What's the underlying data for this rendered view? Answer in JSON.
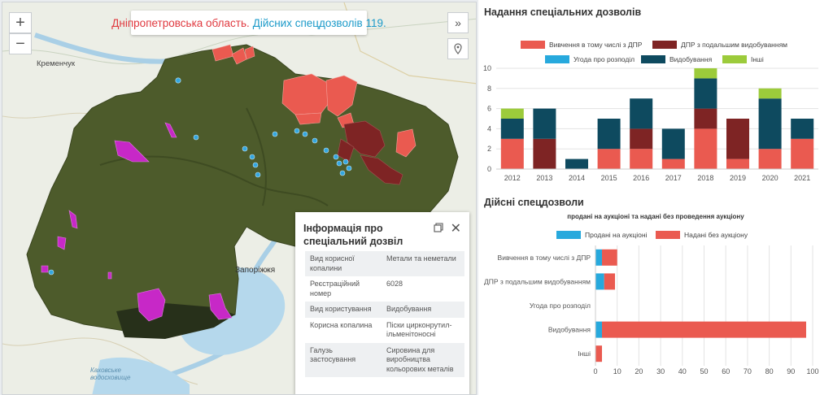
{
  "map": {
    "title_region": "Дніпропетровська область.",
    "title_count": "Дійсних спецдозволів 119.",
    "zoom_in": "+",
    "zoom_out": "−",
    "place_kremenchuk": "Кременчук",
    "place_zaporizhzhia": "Запоріжжя",
    "place_kakhovka": "Каховське водосховище",
    "colors": {
      "land": "#4c5a2a",
      "red": "#ea5a50",
      "darkred": "#7e2424",
      "magenta": "#c728c7",
      "blue": "#35a7e0"
    }
  },
  "info": {
    "title": "Інформація про спеціальний дозвіл",
    "rows": [
      {
        "key": "Вид корисної копалини",
        "value": "Метали та неметали"
      },
      {
        "key": "Реєстраційний номер",
        "value": "6028"
      },
      {
        "key": "Вид користування",
        "value": "Видобування"
      },
      {
        "key": "Корисна копалина",
        "value": "Піски цирконрутил-ільменітоносні"
      },
      {
        "key": "Галузь застосування",
        "value": "Сировина для виробництва кольорових металів"
      }
    ]
  },
  "panel": {
    "section1_title": "Надання спеціальних дозволів",
    "section2_title": "Дійсні спецдозволи",
    "section2_subtitle": "продані на аукціоні та надані без проведення аукціону"
  },
  "chart_data": [
    {
      "type": "bar",
      "stacked": true,
      "title": "Надання спеціальних дозволів",
      "categories": [
        "2012",
        "2013",
        "2014",
        "2015",
        "2016",
        "2017",
        "2018",
        "2019",
        "2020",
        "2021"
      ],
      "series": [
        {
          "name": "Вивчення в тому числі з ДПР",
          "color": "#ea5a50",
          "values": [
            3,
            0,
            0,
            2,
            2,
            1,
            4,
            1,
            2,
            3
          ]
        },
        {
          "name": "ДПР з подальшим видобуванням",
          "color": "#7e2424",
          "values": [
            0,
            3,
            0,
            0,
            2,
            0,
            2,
            4,
            0,
            0
          ]
        },
        {
          "name": "Угода про розподіл",
          "color": "#27a9dd",
          "values": [
            0,
            0,
            0,
            0,
            0,
            0,
            0,
            0,
            0,
            0
          ]
        },
        {
          "name": "Видобування",
          "color": "#0e4a5f",
          "values": [
            2,
            3,
            1,
            3,
            3,
            3,
            3,
            0,
            5,
            2
          ]
        },
        {
          "name": "Інші",
          "color": "#9ccb3b",
          "values": [
            1,
            0,
            0,
            0,
            0,
            0,
            1,
            0,
            1,
            0
          ]
        }
      ],
      "ylim": [
        0,
        10
      ],
      "yticks": [
        0,
        2,
        4,
        6,
        8,
        10
      ],
      "grid": true,
      "legend": "top"
    },
    {
      "type": "bar",
      "orientation": "horizontal",
      "stacked": true,
      "title": "Дійсні спецдозволи",
      "subtitle": "продані на аукціоні та надані без проведення аукціону",
      "categories": [
        "Вивчення в тому числі з ДПР",
        "ДПР з подальшим видобуванням",
        "Угода про розподіл",
        "Видобування",
        "Інші"
      ],
      "series": [
        {
          "name": "Продані на аукціоні",
          "color": "#27a9dd",
          "values": [
            3,
            4,
            0,
            3,
            0
          ]
        },
        {
          "name": "Надані без аукціону",
          "color": "#ea5a50",
          "values": [
            7,
            5,
            0,
            94,
            3
          ]
        }
      ],
      "xlim": [
        0,
        100
      ],
      "xticks": [
        0,
        10,
        20,
        30,
        40,
        50,
        60,
        70,
        80,
        90,
        100
      ],
      "grid": true,
      "legend": "top"
    }
  ]
}
